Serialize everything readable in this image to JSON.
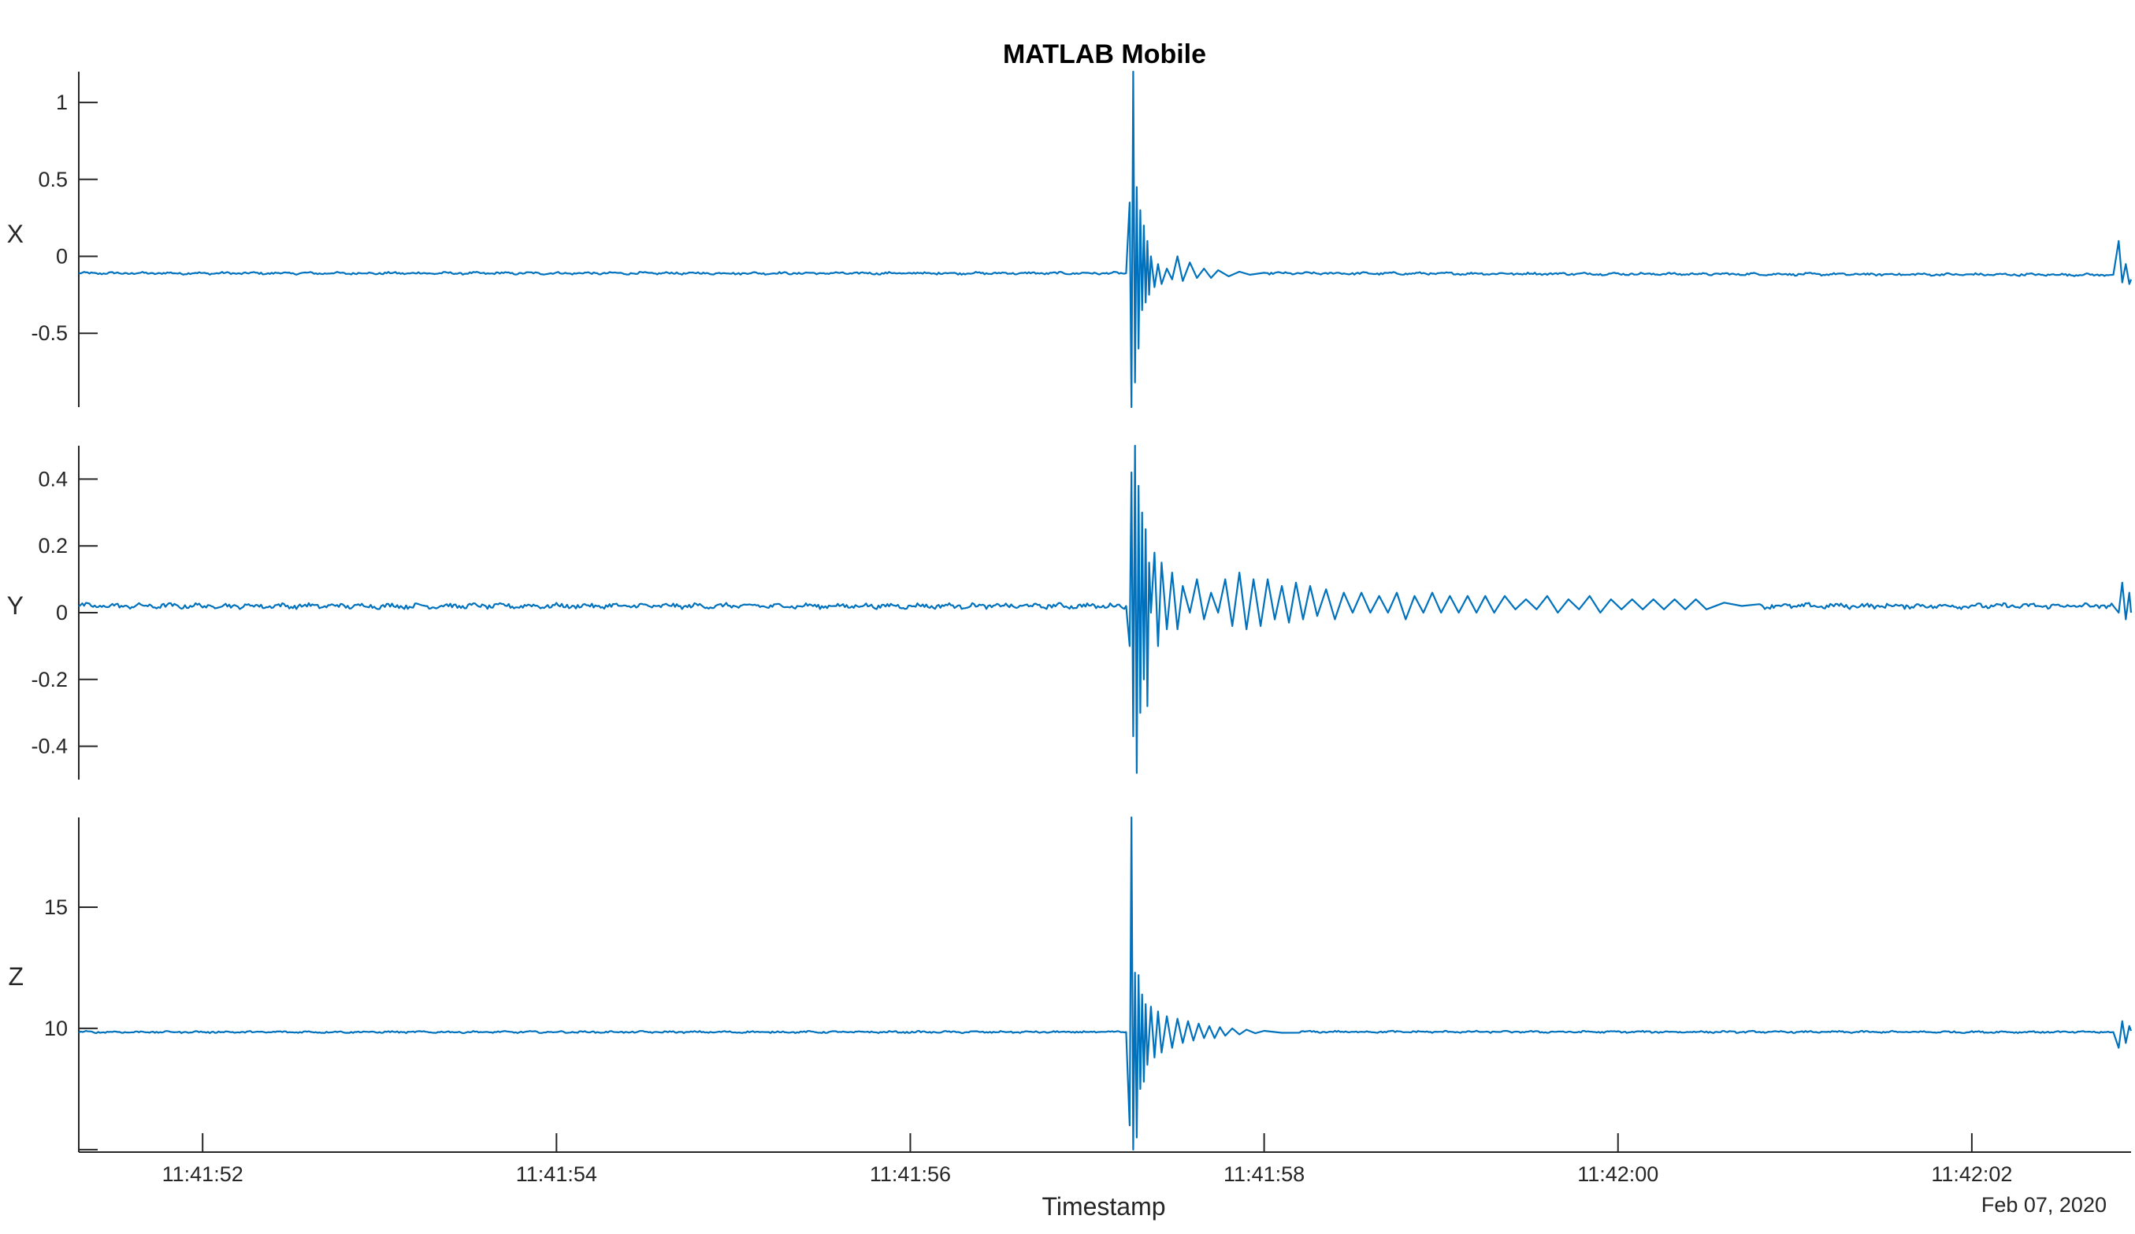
{
  "figure": {
    "title": "MATLAB Mobile",
    "xlabel": "Timestamp",
    "date_label": "Feb 07, 2020",
    "line_color": "#0072BD",
    "axis_color": "#262626"
  },
  "chart_data": [
    {
      "type": "line",
      "title": "MATLAB Mobile",
      "ylabel": "X",
      "ylim": [
        -0.98,
        1.2
      ],
      "yticks": [
        -0.5,
        0,
        0.5,
        1
      ],
      "ytick_labels": [
        "-0.5",
        "0",
        "0.5",
        "1"
      ],
      "xlim": [
        0,
        11.6
      ],
      "grid": false,
      "series": [
        {
          "baseline": -0.11,
          "noise": 0.006,
          "x": [
            0,
            5.92,
            5.94,
            5.95,
            5.96,
            5.97,
            5.98,
            5.99,
            6.0,
            6.01,
            6.02,
            6.03,
            6.04,
            6.05,
            6.06,
            6.08,
            6.1,
            6.12,
            6.15,
            6.18,
            6.21,
            6.24,
            6.28,
            6.32,
            6.36,
            6.4,
            6.44,
            6.5,
            6.56,
            6.62,
            6.7,
            11.5,
            11.53,
            11.55,
            11.57,
            11.59,
            11.6
          ],
          "values": [
            -0.11,
            -0.11,
            0.35,
            -0.98,
            1.2,
            -0.82,
            0.45,
            -0.6,
            0.3,
            -0.35,
            0.2,
            -0.3,
            0.1,
            -0.25,
            0.0,
            -0.2,
            -0.05,
            -0.18,
            -0.08,
            -0.15,
            0.0,
            -0.16,
            -0.04,
            -0.14,
            -0.08,
            -0.14,
            -0.09,
            -0.13,
            -0.1,
            -0.12,
            -0.11,
            -0.12,
            0.1,
            -0.17,
            -0.05,
            -0.18,
            -0.15
          ]
        }
      ]
    },
    {
      "type": "line",
      "ylabel": "Y",
      "ylim": [
        -0.5,
        0.5
      ],
      "yticks": [
        -0.4,
        -0.2,
        0,
        0.2,
        0.4
      ],
      "ytick_labels": [
        "-0.4",
        "-0.2",
        "0",
        "0.2",
        "0.4"
      ],
      "xlim": [
        0,
        11.6
      ],
      "grid": false,
      "series": [
        {
          "baseline": 0.02,
          "noise": 0.006,
          "x": [
            0,
            5.92,
            5.94,
            5.95,
            5.96,
            5.97,
            5.98,
            5.99,
            6.0,
            6.01,
            6.02,
            6.03,
            6.04,
            6.05,
            6.06,
            6.08,
            6.1,
            6.12,
            6.15,
            6.18,
            6.21,
            6.24,
            6.28,
            6.32,
            6.36,
            6.4,
            6.44,
            6.48,
            6.52,
            6.56,
            6.6,
            6.64,
            6.68,
            6.72,
            6.76,
            6.8,
            6.84,
            6.88,
            6.92,
            6.96,
            7.0,
            7.05,
            7.1,
            7.15,
            7.2,
            7.25,
            7.3,
            7.35,
            7.4,
            7.45,
            7.5,
            7.55,
            7.6,
            7.65,
            7.7,
            7.75,
            7.8,
            7.85,
            7.9,
            7.95,
            8.0,
            8.06,
            8.12,
            8.18,
            8.24,
            8.3,
            8.36,
            8.42,
            8.48,
            8.54,
            8.6,
            8.66,
            8.72,
            8.78,
            8.84,
            8.9,
            8.96,
            9.02,
            9.08,
            9.14,
            9.2,
            9.3,
            9.4,
            9.5,
            11.5,
            11.53,
            11.55,
            11.57,
            11.59,
            11.6
          ],
          "values": [
            0.02,
            0.02,
            -0.1,
            0.42,
            -0.37,
            0.5,
            -0.48,
            0.38,
            -0.3,
            0.3,
            -0.2,
            0.25,
            -0.28,
            0.15,
            0.0,
            0.18,
            -0.1,
            0.15,
            -0.05,
            0.12,
            -0.05,
            0.08,
            0.0,
            0.1,
            -0.02,
            0.06,
            0.0,
            0.1,
            -0.04,
            0.12,
            -0.05,
            0.1,
            -0.04,
            0.1,
            -0.02,
            0.08,
            -0.03,
            0.09,
            -0.02,
            0.08,
            -0.01,
            0.07,
            -0.02,
            0.06,
            0.0,
            0.06,
            0.0,
            0.05,
            0.0,
            0.06,
            -0.02,
            0.05,
            0.0,
            0.06,
            0.0,
            0.05,
            0.0,
            0.05,
            0.0,
            0.05,
            0.0,
            0.05,
            0.01,
            0.04,
            0.01,
            0.05,
            0.0,
            0.04,
            0.01,
            0.05,
            0.0,
            0.04,
            0.01,
            0.04,
            0.01,
            0.04,
            0.01,
            0.04,
            0.01,
            0.04,
            0.01,
            0.03,
            0.02,
            0.02,
            0.02,
            0.0,
            0.09,
            -0.02,
            0.06,
            0.0
          ]
        }
      ]
    },
    {
      "type": "line",
      "ylabel": "Z",
      "xlabel": "Timestamp",
      "ylim": [
        4.9,
        18.7
      ],
      "yticks": [
        5,
        10,
        15
      ],
      "ytick_labels": [
        "",
        "10",
        "15"
      ],
      "xlim": [
        0,
        11.6
      ],
      "xticks": [
        0.7,
        2.7,
        4.7,
        6.7,
        8.7,
        10.7
      ],
      "xtick_labels": [
        "11:41:52",
        "11:41:54",
        "11:41:56",
        "11:41:58",
        "11:42:00",
        "11:42:02"
      ],
      "grid": false,
      "series": [
        {
          "baseline": 9.85,
          "noise": 0.03,
          "x": [
            0,
            5.92,
            5.94,
            5.95,
            5.96,
            5.97,
            5.98,
            5.99,
            6.0,
            6.01,
            6.02,
            6.03,
            6.04,
            6.06,
            6.08,
            6.1,
            6.12,
            6.15,
            6.18,
            6.21,
            6.24,
            6.27,
            6.3,
            6.33,
            6.36,
            6.39,
            6.42,
            6.45,
            6.48,
            6.52,
            6.56,
            6.6,
            6.65,
            6.7,
            6.8,
            6.9,
            11.5,
            11.53,
            11.55,
            11.57,
            11.59,
            11.6
          ],
          "values": [
            9.85,
            9.85,
            6.0,
            18.7,
            5.0,
            12.3,
            5.5,
            12.2,
            7.5,
            11.4,
            7.8,
            11.0,
            8.5,
            10.9,
            8.8,
            10.7,
            9.0,
            10.5,
            9.2,
            10.4,
            9.4,
            10.3,
            9.5,
            10.2,
            9.6,
            10.1,
            9.6,
            10.05,
            9.7,
            10.0,
            9.75,
            9.95,
            9.8,
            9.9,
            9.82,
            9.86,
            9.85,
            9.2,
            10.3,
            9.4,
            10.1,
            9.9
          ]
        }
      ]
    }
  ]
}
